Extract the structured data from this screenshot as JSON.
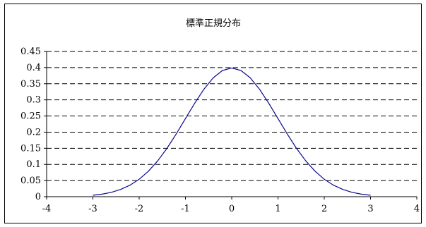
{
  "chart_data": {
    "type": "line",
    "title": "標準正規分布",
    "xlim": [
      -4,
      4
    ],
    "ylim": [
      0,
      0.45
    ],
    "x_ticks": [
      -4,
      -3,
      -2,
      -1,
      0,
      1,
      2,
      3,
      4
    ],
    "y_ticks": [
      0,
      0.05,
      0.1,
      0.15,
      0.2,
      0.25,
      0.3,
      0.35,
      0.4,
      0.45
    ],
    "x_tick_labels": [
      "-4",
      "-3",
      "-2",
      "-1",
      "0",
      "1",
      "2",
      "3",
      "4"
    ],
    "y_tick_labels": [
      "0",
      "0.05",
      "0.1",
      "0.15",
      "0.2",
      "0.25",
      "0.3",
      "0.35",
      "0.4",
      "0.45"
    ],
    "grid": "horizontal dashed",
    "legend": "none",
    "colors": {
      "line": "#0a0a8c",
      "grid": "#000000"
    },
    "series": [
      {
        "x": [
          -3,
          -2.8,
          -2.6,
          -2.4,
          -2.2,
          -2,
          -1.8,
          -1.6,
          -1.4,
          -1.2,
          -1,
          -0.8,
          -0.6,
          -0.4,
          -0.2,
          0,
          0.2,
          0.4,
          0.6,
          0.8,
          1,
          1.2,
          1.4,
          1.6,
          1.8,
          2,
          2.2,
          2.4,
          2.6,
          2.8,
          3
        ],
        "values": [
          0.0044,
          0.0079,
          0.0136,
          0.0224,
          0.0355,
          0.054,
          0.079,
          0.1109,
          0.1497,
          0.1942,
          0.242,
          0.2897,
          0.3332,
          0.3683,
          0.391,
          0.3989,
          0.391,
          0.3683,
          0.3332,
          0.2897,
          0.242,
          0.1942,
          0.1497,
          0.1109,
          0.079,
          0.054,
          0.0355,
          0.0224,
          0.0136,
          0.0079,
          0.0044
        ]
      }
    ]
  }
}
